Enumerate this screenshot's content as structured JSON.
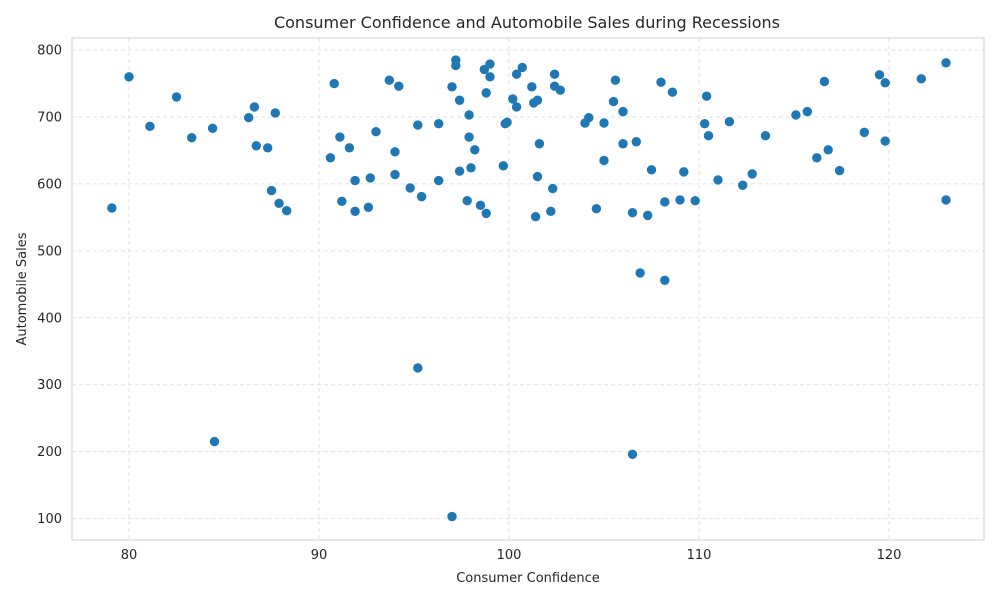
{
  "chart_data": {
    "type": "scatter",
    "title": "Consumer Confidence and Automobile Sales during Recessions",
    "xlabel": "Consumer Confidence",
    "ylabel": "Automobile Sales",
    "xlim": [
      77,
      125
    ],
    "ylim": [
      68,
      818
    ],
    "xticks": [
      80,
      90,
      100,
      110,
      120
    ],
    "yticks": [
      100,
      200,
      300,
      400,
      500,
      600,
      700,
      800
    ],
    "grid": true,
    "color": "#1f77b4",
    "points": [
      [
        79.1,
        564
      ],
      [
        80.0,
        760
      ],
      [
        81.1,
        686
      ],
      [
        82.5,
        730
      ],
      [
        83.3,
        669
      ],
      [
        84.4,
        683
      ],
      [
        84.5,
        215
      ],
      [
        86.3,
        699
      ],
      [
        86.6,
        715
      ],
      [
        86.7,
        657
      ],
      [
        87.3,
        654
      ],
      [
        87.5,
        590
      ],
      [
        87.7,
        706
      ],
      [
        87.9,
        571
      ],
      [
        88.3,
        560
      ],
      [
        90.6,
        639
      ],
      [
        90.8,
        750
      ],
      [
        91.1,
        670
      ],
      [
        91.2,
        574
      ],
      [
        91.6,
        654
      ],
      [
        91.9,
        605
      ],
      [
        91.9,
        559
      ],
      [
        92.6,
        565
      ],
      [
        92.7,
        609
      ],
      [
        93.0,
        678
      ],
      [
        93.7,
        755
      ],
      [
        94.0,
        648
      ],
      [
        94.0,
        614
      ],
      [
        94.2,
        746
      ],
      [
        94.8,
        594
      ],
      [
        95.2,
        688
      ],
      [
        95.2,
        325
      ],
      [
        95.4,
        581
      ],
      [
        96.3,
        690
      ],
      [
        96.3,
        605
      ],
      [
        97.0,
        745
      ],
      [
        97.0,
        103
      ],
      [
        97.2,
        785
      ],
      [
        97.2,
        777
      ],
      [
        97.4,
        725
      ],
      [
        97.4,
        619
      ],
      [
        97.8,
        575
      ],
      [
        97.9,
        670
      ],
      [
        97.9,
        703
      ],
      [
        98.0,
        624
      ],
      [
        98.2,
        651
      ],
      [
        98.5,
        568
      ],
      [
        98.7,
        771
      ],
      [
        98.8,
        736
      ],
      [
        98.8,
        556
      ],
      [
        99.0,
        779
      ],
      [
        99.0,
        760
      ],
      [
        99.7,
        627
      ],
      [
        99.8,
        690
      ],
      [
        99.9,
        692
      ],
      [
        100.2,
        727
      ],
      [
        100.4,
        715
      ],
      [
        100.4,
        764
      ],
      [
        100.7,
        774
      ],
      [
        101.2,
        745
      ],
      [
        101.3,
        721
      ],
      [
        101.4,
        551
      ],
      [
        101.5,
        725
      ],
      [
        101.5,
        611
      ],
      [
        101.6,
        660
      ],
      [
        102.2,
        559
      ],
      [
        102.3,
        593
      ],
      [
        102.4,
        764
      ],
      [
        102.4,
        746
      ],
      [
        102.7,
        740
      ],
      [
        104.0,
        691
      ],
      [
        104.2,
        699
      ],
      [
        104.6,
        563
      ],
      [
        105.0,
        691
      ],
      [
        105.0,
        635
      ],
      [
        105.5,
        723
      ],
      [
        105.6,
        755
      ],
      [
        106.0,
        708
      ],
      [
        106.0,
        660
      ],
      [
        106.5,
        557
      ],
      [
        106.5,
        196
      ],
      [
        106.7,
        663
      ],
      [
        106.9,
        467
      ],
      [
        107.3,
        553
      ],
      [
        107.5,
        621
      ],
      [
        108.0,
        752
      ],
      [
        108.2,
        573
      ],
      [
        108.2,
        456
      ],
      [
        108.6,
        737
      ],
      [
        109.0,
        576
      ],
      [
        109.2,
        618
      ],
      [
        109.8,
        575
      ],
      [
        110.3,
        690
      ],
      [
        110.4,
        731
      ],
      [
        110.5,
        672
      ],
      [
        111.0,
        606
      ],
      [
        111.6,
        693
      ],
      [
        112.3,
        598
      ],
      [
        112.8,
        615
      ],
      [
        113.5,
        672
      ],
      [
        115.1,
        703
      ],
      [
        115.7,
        708
      ],
      [
        116.2,
        639
      ],
      [
        116.6,
        753
      ],
      [
        116.8,
        651
      ],
      [
        117.4,
        620
      ],
      [
        118.7,
        677
      ],
      [
        119.5,
        763
      ],
      [
        119.8,
        751
      ],
      [
        119.8,
        664
      ],
      [
        121.7,
        757
      ],
      [
        123.0,
        781
      ],
      [
        123.0,
        576
      ]
    ]
  }
}
